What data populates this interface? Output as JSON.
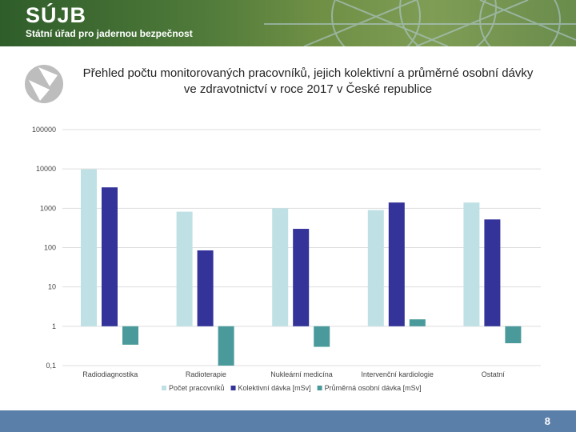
{
  "header": {
    "logo_text": "SÚJB",
    "org_name": "Státní úřad pro jadernou bezpečnost"
  },
  "footer": {
    "page_number": "8"
  },
  "colors": {
    "header_green": "#4f7a3a",
    "footer_blue": "#5a7fa8",
    "series_light": "#bfe1e5",
    "series_dark": "#33339a",
    "series_teal": "#4a9a9c"
  },
  "chart_data": {
    "type": "bar",
    "title": "Přehled počtu monitorovaných pracovníků, jejich kolektivní a průměrné osobní dávky ve zdravotnictví v roce 2017 v České republice",
    "categories": [
      "Radiodiagnostika",
      "Radioterapie",
      "Nukleární medicína",
      "Intervenční kardiologie",
      "Ostatní"
    ],
    "series": [
      {
        "name": "Počet pracovníků",
        "color": "#bfe1e5",
        "values": [
          9800,
          820,
          1000,
          900,
          1400
        ]
      },
      {
        "name": "Kolektivní dávka [mSv]",
        "color": "#33339a",
        "values": [
          3400,
          85,
          300,
          1400,
          520
        ]
      },
      {
        "name": "Průměrná osobní dávka [mSv]",
        "color": "#4a9a9c",
        "values": [
          0.34,
          0.1,
          0.3,
          1.5,
          0.37
        ]
      }
    ],
    "y_scale": "log",
    "ylim": [
      0.1,
      100000
    ],
    "y_ticks": [
      "0,1",
      "1",
      "10",
      "100",
      "1000",
      "10000",
      "100000"
    ],
    "grid": true,
    "legend_position": "bottom"
  }
}
